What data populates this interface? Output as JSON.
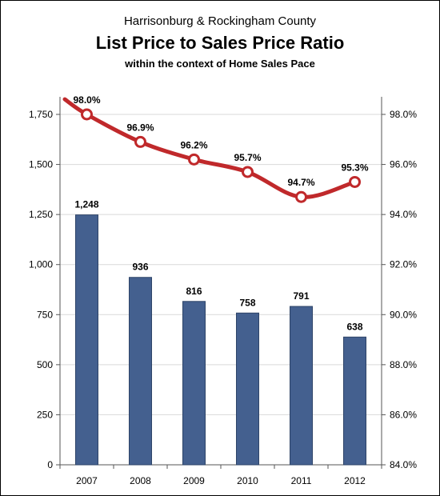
{
  "header": {
    "line1": "Harrisonburg & Rockingham County",
    "title": "List Price to Sales Price Ratio",
    "subtitle": "within the context of Home Sales Pace"
  },
  "chart_data": {
    "type": "bar",
    "categories": [
      "2007",
      "2008",
      "2009",
      "2010",
      "2011",
      "2012"
    ],
    "series": [
      {
        "type": "bar",
        "axis": "left",
        "values": [
          1248,
          936,
          816,
          758,
          791,
          638
        ],
        "labels": [
          "1,248",
          "936",
          "816",
          "758",
          "791",
          "638"
        ],
        "color": "#44608f"
      },
      {
        "type": "line",
        "axis": "right",
        "values": [
          98.0,
          96.9,
          96.2,
          95.7,
          94.7,
          95.3
        ],
        "labels": [
          "98.0%",
          "96.9%",
          "96.2%",
          "95.7%",
          "94.7%",
          "95.3%"
        ],
        "color": "#c0292b"
      }
    ],
    "y_left": {
      "ylim": [
        0,
        1750
      ],
      "ticks": [
        0,
        250,
        500,
        750,
        1000,
        1250,
        1500,
        1750
      ],
      "tick_labels": [
        "0",
        "250",
        "500",
        "750",
        "1,000",
        "1,250",
        "1,500",
        "1,750"
      ]
    },
    "y_right": {
      "ylim": [
        84,
        98
      ],
      "ticks": [
        84,
        86,
        88,
        90,
        92,
        94,
        96,
        98
      ],
      "tick_labels": [
        "84.0%",
        "86.0%",
        "88.0%",
        "90.0%",
        "92.0%",
        "94.0%",
        "96.0%",
        "98.0%"
      ]
    },
    "grid": true,
    "legend": "none"
  }
}
